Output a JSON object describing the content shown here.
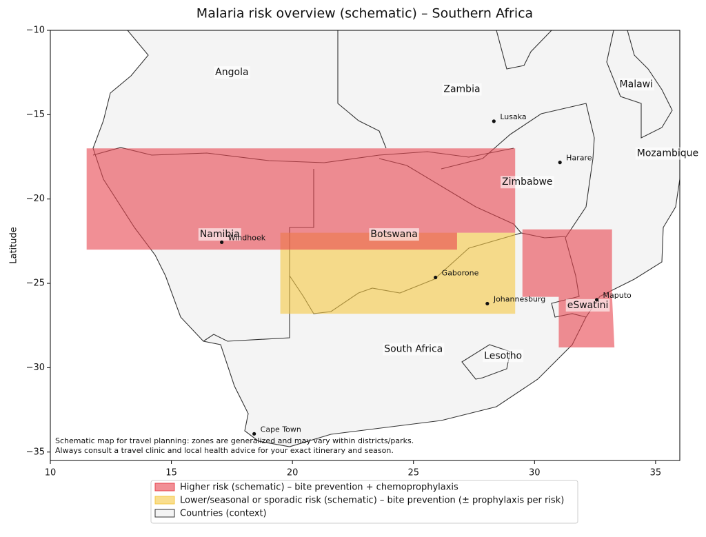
{
  "chart_data": {
    "type": "map",
    "title": "Malaria risk overview (schematic) – Southern Africa",
    "y_label": "Latitude",
    "xlim": [
      10,
      36
    ],
    "ylim": [
      -35.5,
      -10
    ],
    "xticks": [
      10,
      15,
      20,
      25,
      30,
      35
    ],
    "yticks": [
      {
        "value": -10,
        "label": "−10"
      },
      {
        "value": -15,
        "label": "−15"
      },
      {
        "value": -20,
        "label": "−20"
      },
      {
        "value": -25,
        "label": "−25"
      },
      {
        "value": -30,
        "label": "−30"
      },
      {
        "value": -35,
        "label": "−35"
      }
    ],
    "zones": [
      {
        "name": "Higher risk (schematic) – bite prevention + chemoprophylaxis",
        "color": "#e8444f",
        "polygons": [
          {
            "lon": [
              11.5,
              29.2,
              29.2,
              26.8,
              26.8,
              11.5
            ],
            "lat": [
              -17,
              -17,
              -22,
              -22,
              -23,
              -23
            ]
          },
          {
            "lon": [
              29.5,
              33.2,
              33.2,
              33.3,
              31,
              31,
              29.5
            ],
            "lat": [
              -21.8,
              -21.8,
              -25.7,
              -28.8,
              -28.8,
              -25.8,
              -25.8
            ]
          }
        ]
      },
      {
        "name": "Lower/seasonal or sporadic risk (schematic) – bite prevention (± prophylaxis per risk)",
        "color": "#f5c842",
        "polygons": [
          {
            "lon": [
              19.5,
              29.2,
              29.2,
              19.5
            ],
            "lat": [
              -22,
              -22,
              -26.8,
              -26.8
            ]
          }
        ]
      }
    ],
    "countries_legend": "Countries (context)",
    "countries": [
      {
        "name": "Angola",
        "lon": 17.5,
        "lat": -12.5
      },
      {
        "name": "Zambia",
        "lon": 27.0,
        "lat": -13.5
      },
      {
        "name": "Malawi",
        "lon": 34.2,
        "lat": -13.2
      },
      {
        "name": "Mozambique",
        "lon": 35.5,
        "lat": -17.3
      },
      {
        "name": "Zimbabwe",
        "lon": 29.7,
        "lat": -19.0
      },
      {
        "name": "Namibia",
        "lon": 17.0,
        "lat": -22.1
      },
      {
        "name": "Botswana",
        "lon": 24.2,
        "lat": -22.1
      },
      {
        "name": "South Africa",
        "lon": 25.0,
        "lat": -28.9
      },
      {
        "name": "Lesotho",
        "lon": 28.7,
        "lat": -29.3
      },
      {
        "name": "eSwatini",
        "lon": 32.2,
        "lat": -26.3
      }
    ],
    "cities": [
      {
        "name": "Windhoek",
        "lon": 17.08,
        "lat": -22.56
      },
      {
        "name": "Lusaka",
        "lon": 28.32,
        "lat": -15.39
      },
      {
        "name": "Harare",
        "lon": 31.05,
        "lat": -17.83
      },
      {
        "name": "Gaborone",
        "lon": 25.91,
        "lat": -24.65
      },
      {
        "name": "Johannesburg",
        "lon": 28.05,
        "lat": -26.2
      },
      {
        "name": "Maputo",
        "lon": 32.57,
        "lat": -25.97
      },
      {
        "name": "Cape Town",
        "lon": 18.42,
        "lat": -33.92
      }
    ],
    "annotation": [
      "Schematic map for travel planning: zones are generalized and may vary within districts/parks.",
      "Always consult a travel clinic and local health advice for your exact itinerary and season."
    ]
  }
}
